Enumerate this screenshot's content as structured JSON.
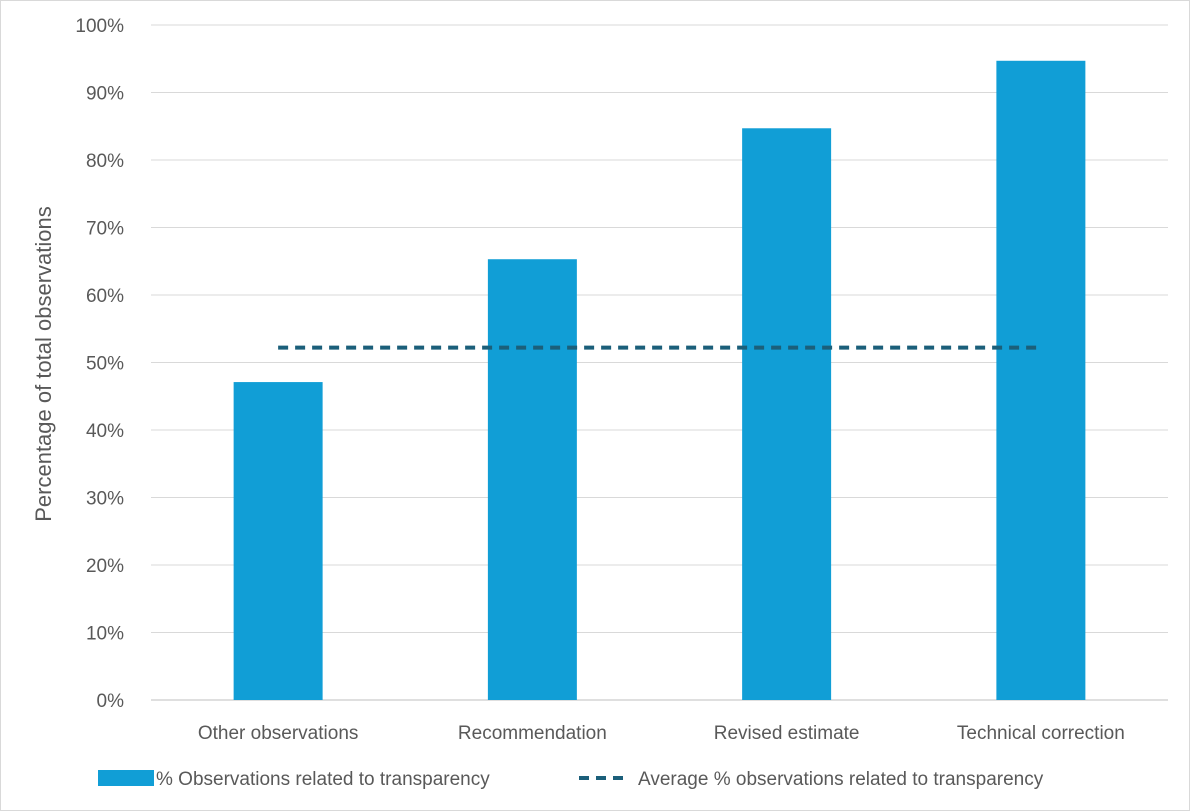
{
  "chart_data": {
    "type": "bar",
    "title": "",
    "xlabel": "",
    "ylabel": "Percentage of total observations",
    "categories": [
      "Other observations",
      "Recommendation",
      "Revised estimate",
      "Technical correction"
    ],
    "series": [
      {
        "name": "% Observations related to transparency",
        "type": "bar",
        "values": [
          47.1,
          65.3,
          84.7,
          94.7
        ],
        "color": "#119ed6"
      },
      {
        "name": "Average % observations related to transparency",
        "type": "line",
        "style": "dashed",
        "values": [
          52.2,
          52.2,
          52.2,
          52.2
        ],
        "color": "#1b5f7a"
      }
    ],
    "ylim": [
      0,
      100
    ],
    "yticks": [
      "0%",
      "10%",
      "20%",
      "30%",
      "40%",
      "50%",
      "60%",
      "70%",
      "80%",
      "90%",
      "100%"
    ],
    "grid": true,
    "legend_position": "bottom"
  }
}
